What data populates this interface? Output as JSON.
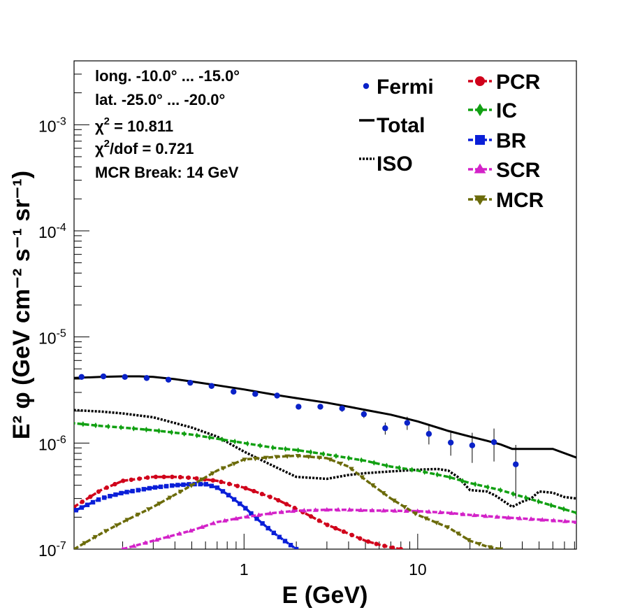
{
  "chart_data": {
    "type": "line",
    "xscale": "log",
    "yscale": "log",
    "xlim": [
      0.105,
      82
    ],
    "ylim": [
      1e-07,
      0.004
    ],
    "xlabel": "E (GeV)",
    "ylabel": "E² φ (GeV cm⁻² s⁻¹ sr⁻¹)",
    "x_ticks": [
      {
        "value": 1,
        "label": "1"
      },
      {
        "value": 10,
        "label": "10"
      }
    ],
    "y_ticks": [
      {
        "value": 1e-07,
        "mant": "10",
        "exp": "-7"
      },
      {
        "value": 1e-06,
        "mant": "10",
        "exp": "-6"
      },
      {
        "value": 1e-05,
        "mant": "10",
        "exp": "-5"
      },
      {
        "value": 0.0001,
        "mant": "10",
        "exp": "-4"
      },
      {
        "value": 0.001,
        "mant": "10",
        "exp": "-3"
      }
    ],
    "annotations": {
      "longitude": "long. -10.0° ... -15.0°",
      "latitude": "lat. -25.0° ... -20.0°",
      "chi2_label": "χ",
      "chi2_sup": "2",
      "chi2_value": " = 10.811",
      "chi2dof_label": "χ",
      "chi2dof_sup": "2",
      "chi2dof_value": "/dof = 0.721",
      "break": "MCR Break: 14 GeV"
    },
    "fermi": {
      "name": "Fermi",
      "color": "#0a22c8",
      "points": [
        {
          "x": 0.116,
          "y": 4.2e-06,
          "err": 8e-08
        },
        {
          "x": 0.155,
          "y": 4.25e-06,
          "err": 8e-08
        },
        {
          "x": 0.206,
          "y": 4.2e-06,
          "err": 8e-08
        },
        {
          "x": 0.275,
          "y": 4.1e-06,
          "err": 8e-08
        },
        {
          "x": 0.367,
          "y": 3.95e-06,
          "err": 8e-08
        },
        {
          "x": 0.49,
          "y": 3.7e-06,
          "err": 8e-08
        },
        {
          "x": 0.65,
          "y": 3.45e-06,
          "err": 8e-08
        },
        {
          "x": 0.87,
          "y": 3.05e-06,
          "err": 8e-08
        },
        {
          "x": 1.16,
          "y": 2.9e-06,
          "err": 8e-08
        },
        {
          "x": 1.55,
          "y": 2.8e-06,
          "err": 1e-07
        },
        {
          "x": 2.06,
          "y": 2.2e-06,
          "err": 1e-07
        },
        {
          "x": 2.75,
          "y": 2.2e-06,
          "err": 1e-07
        },
        {
          "x": 3.67,
          "y": 2.12e-06,
          "err": 1.5e-07
        },
        {
          "x": 4.9,
          "y": 1.87e-06,
          "err": 1.5e-07
        },
        {
          "x": 6.5,
          "y": 1.38e-06,
          "err": 1.8e-07
        },
        {
          "x": 8.7,
          "y": 1.55e-06,
          "err": 2.2e-07
        },
        {
          "x": 11.6,
          "y": 1.22e-06,
          "err": 2.5e-07
        },
        {
          "x": 15.5,
          "y": 1.01e-06,
          "err": 2.5e-07
        },
        {
          "x": 20.6,
          "y": 9.5e-07,
          "err": 3e-07
        },
        {
          "x": 27.5,
          "y": 1.02e-06,
          "err": 3.5e-07
        },
        {
          "x": 36.7,
          "y": 6.3e-07,
          "err": 3.3e-07
        }
      ]
    },
    "series": [
      {
        "name": "Total",
        "color": "#000000",
        "style": "solid",
        "marker": "none",
        "x": [
          0.1,
          0.15,
          0.2,
          0.25,
          0.3,
          0.4,
          0.5,
          0.7,
          1.0,
          1.5,
          2,
          3,
          4,
          5,
          7,
          10,
          15,
          20,
          25,
          30,
          35,
          45,
          60,
          82
        ],
        "y": [
          4.1e-06,
          4.2e-06,
          4.25e-06,
          4.25e-06,
          4.2e-06,
          4e-06,
          3.8e-06,
          3.5e-06,
          3.2e-06,
          2.85e-06,
          2.65e-06,
          2.4e-06,
          2.2e-06,
          2.05e-06,
          1.85e-06,
          1.6e-06,
          1.3e-06,
          1.15e-06,
          1.05e-06,
          9.7e-07,
          8.8e-07,
          8.8e-07,
          8.8e-07,
          7.3e-07
        ]
      },
      {
        "name": "ISO",
        "color": "#000000",
        "style": "dotted",
        "marker": "none",
        "x": [
          0.1,
          0.15,
          0.2,
          0.3,
          0.5,
          0.7,
          1.0,
          1.5,
          2,
          3,
          4,
          5,
          7,
          10,
          13,
          15,
          17,
          20,
          25,
          28,
          35,
          40,
          45,
          50,
          60,
          70,
          82
        ],
        "y": [
          2.05e-06,
          1.98e-06,
          1.9e-06,
          1.75e-06,
          1.4e-06,
          1.15e-06,
          8.3e-07,
          6e-07,
          4.8e-07,
          4.6e-07,
          5e-07,
          5.2e-07,
          5.4e-07,
          5.6e-07,
          5.7e-07,
          5.5e-07,
          4.8e-07,
          3.6e-07,
          3.5e-07,
          3.2e-07,
          2.5e-07,
          2.8e-07,
          3e-07,
          3.5e-07,
          3.4e-07,
          3.1e-07,
          3e-07
        ]
      },
      {
        "name": "IC",
        "color": "#11a012",
        "style": "dashed",
        "marker": "diamond",
        "x": [
          0.1,
          0.15,
          0.2,
          0.3,
          0.5,
          0.7,
          1.0,
          1.5,
          2,
          3,
          5,
          7,
          10,
          15,
          20,
          30,
          50,
          82
        ],
        "y": [
          1.55e-06,
          1.45e-06,
          1.4e-06,
          1.32e-06,
          1.2e-06,
          1.1e-06,
          1e-06,
          9e-07,
          8.6e-07,
          7.8e-07,
          6.8e-07,
          6e-07,
          5.5e-07,
          4.8e-07,
          4.2e-07,
          3.6e-07,
          2.8e-07,
          2.2e-07
        ]
      },
      {
        "name": "PCR",
        "color": "#d0021b",
        "style": "dashed",
        "marker": "circle",
        "x": [
          0.105,
          0.15,
          0.2,
          0.3,
          0.4,
          0.5,
          0.7,
          1.0,
          1.5,
          2,
          3,
          4,
          5,
          6,
          7,
          8
        ],
        "y": [
          2.5e-07,
          3.6e-07,
          4.4e-07,
          4.8e-07,
          4.8e-07,
          4.7e-07,
          4.4e-07,
          3.8e-07,
          3e-07,
          2.4e-07,
          1.7e-07,
          1.4e-07,
          1.2e-07,
          1.1e-07,
          1.04e-07,
          1e-07
        ]
      },
      {
        "name": "BR",
        "color": "#0a1fd8",
        "style": "dashed",
        "marker": "square",
        "x": [
          0.1,
          0.15,
          0.2,
          0.3,
          0.4,
          0.5,
          0.6,
          0.7,
          0.8,
          1.0,
          1.2,
          1.5,
          2.0
        ],
        "y": [
          2.2e-07,
          3e-07,
          3.4e-07,
          3.8e-07,
          4e-07,
          4.1e-07,
          4.1e-07,
          3.8e-07,
          3.3e-07,
          2.5e-07,
          1.9e-07,
          1.4e-07,
          1e-07
        ]
      },
      {
        "name": "SCR",
        "color": "#d322c8",
        "style": "dashed",
        "marker": "triangle-up",
        "x": [
          0.2,
          0.3,
          0.5,
          0.7,
          1.0,
          1.5,
          2,
          3,
          4,
          5,
          7,
          10,
          15,
          20,
          30,
          50,
          82
        ],
        "y": [
          1e-07,
          1.2e-07,
          1.5e-07,
          1.8e-07,
          2e-07,
          2.2e-07,
          2.3e-07,
          2.35e-07,
          2.35e-07,
          2.32e-07,
          2.3e-07,
          2.28e-07,
          2.2e-07,
          2.1e-07,
          2e-07,
          1.9e-07,
          1.8e-07
        ]
      },
      {
        "name": "MCR",
        "color": "#6b6b0a",
        "style": "dashed",
        "marker": "triangle-down",
        "x": [
          0.105,
          0.15,
          0.2,
          0.3,
          0.5,
          0.7,
          1.0,
          1.5,
          2,
          3,
          4,
          5,
          7,
          10,
          15,
          20,
          25,
          30
        ],
        "y": [
          1e-07,
          1.4e-07,
          1.8e-07,
          2.5e-07,
          4e-07,
          5.5e-07,
          7e-07,
          7.4e-07,
          7.6e-07,
          7.2e-07,
          6e-07,
          4.5e-07,
          3e-07,
          2.1e-07,
          1.6e-07,
          1.2e-07,
          1.06e-07,
          1e-07
        ]
      }
    ],
    "legend_left": [
      "Fermi",
      "Total",
      "ISO"
    ],
    "legend_right": [
      "PCR",
      "IC",
      "BR",
      "SCR",
      "MCR"
    ]
  }
}
